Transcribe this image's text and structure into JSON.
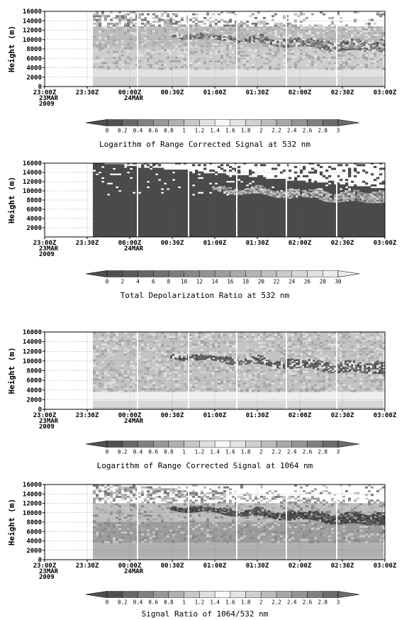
{
  "x_tick_labels": [
    "23:00Z",
    "23:30Z",
    "00:00Z",
    "00:30Z",
    "01:00Z",
    "01:30Z",
    "02:00Z",
    "02:30Z",
    "03:00Z"
  ],
  "x_sub_labels": {
    "23:00Z": [
      "23MAR",
      "2009"
    ],
    "00:00Z": [
      "24MAR"
    ]
  },
  "chart_data": [
    {
      "type": "heatmap",
      "ylabel": "Height (m)",
      "ylim": [
        0,
        16000
      ],
      "y_ticks": [
        0,
        2000,
        4000,
        6000,
        8000,
        10000,
        12000,
        14000,
        16000
      ],
      "xlim": [
        "2009-03-23T23:00Z",
        "2009-03-24T03:00Z"
      ],
      "grid": true,
      "colorbar": {
        "ticks": [
          "0",
          "0.2",
          "0.4",
          "0.6",
          "0.8",
          "1",
          "1.2",
          "1.4",
          "1.6",
          "1.8",
          "2",
          "2.2",
          "2.4",
          "2.6",
          "2.8",
          "3"
        ]
      },
      "caption": "Logarithm of Range Corrected Signal at 532 nm",
      "style": "log532"
    },
    {
      "type": "heatmap",
      "ylabel": "Height (m)",
      "ylim": [
        0,
        16000
      ],
      "y_ticks": [
        2000,
        4000,
        6000,
        8000,
        10000,
        12000,
        14000,
        16000
      ],
      "xlim": [
        "2009-03-23T23:00Z",
        "2009-03-24T03:00Z"
      ],
      "grid": true,
      "colorbar": {
        "ticks": [
          "0",
          "2",
          "4",
          "6",
          "8",
          "10",
          "12",
          "14",
          "16",
          "18",
          "20",
          "22",
          "24",
          "26",
          "28",
          "30"
        ]
      },
      "caption": "Total Depolarization Ratio at 532 nm",
      "style": "depol"
    },
    {
      "type": "heatmap",
      "ylabel": "Height (m)",
      "ylim": [
        0,
        16000
      ],
      "y_ticks": [
        0,
        2000,
        4000,
        6000,
        8000,
        10000,
        12000,
        14000,
        16000
      ],
      "xlim": [
        "2009-03-23T23:00Z",
        "2009-03-24T03:00Z"
      ],
      "grid": true,
      "colorbar": {
        "ticks": [
          "0",
          "0.2",
          "0.4",
          "0.6",
          "0.8",
          "1",
          "1.2",
          "1.4",
          "1.6",
          "1.8",
          "2",
          "2.2",
          "2.4",
          "2.6",
          "2.8",
          "3"
        ]
      },
      "caption": "Logarithm of Range Corrected Signal at 1064 nm",
      "style": "log1064"
    },
    {
      "type": "heatmap",
      "ylabel": "Height (m)",
      "ylim": [
        0,
        16000
      ],
      "y_ticks": [
        0,
        2000,
        4000,
        6000,
        8000,
        10000,
        12000,
        14000,
        16000
      ],
      "xlim": [
        "2009-03-23T23:00Z",
        "2009-03-24T03:00Z"
      ],
      "grid": true,
      "colorbar": {
        "ticks": [
          "0",
          "0.2",
          "0.4",
          "0.6",
          "0.8",
          "1",
          "1.2",
          "1.4",
          "1.6",
          "1.8",
          "2",
          "2.2",
          "2.4",
          "2.6",
          "2.8",
          "3"
        ]
      },
      "caption": "Signal Ratio of 1064/532  nm",
      "style": "ratio"
    }
  ]
}
